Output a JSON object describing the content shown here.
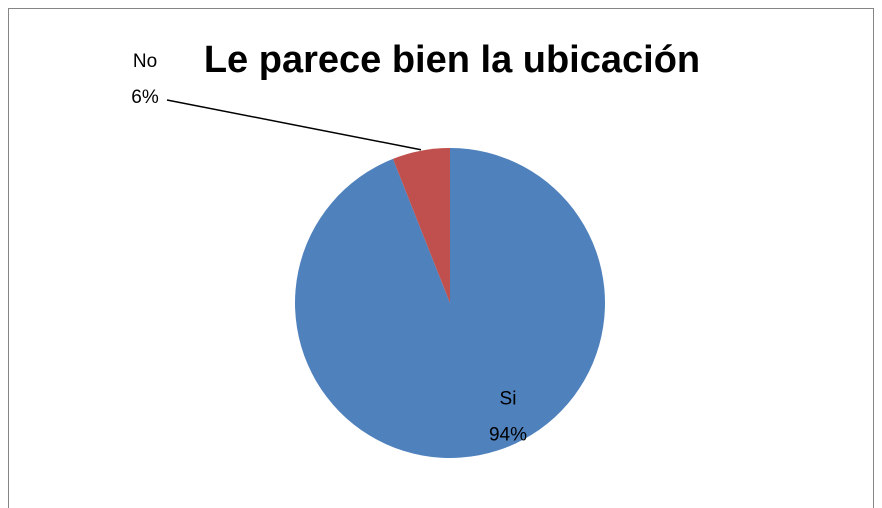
{
  "chart_data": {
    "type": "pie",
    "title": "Le parece bien la ubicación",
    "categories": [
      "Si",
      "No"
    ],
    "values": [
      94,
      6
    ],
    "value_labels": [
      "94%",
      "6%"
    ],
    "colors": [
      "#4f81bd",
      "#c0504d"
    ]
  }
}
